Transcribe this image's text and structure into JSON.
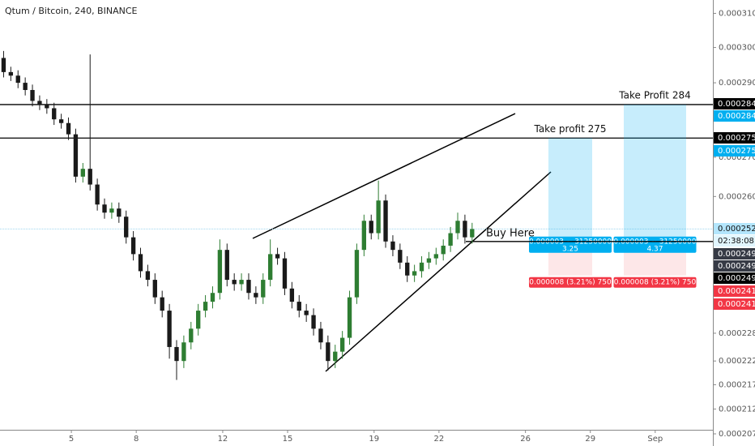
{
  "chart_data": {
    "type": "candlestick",
    "title": "Qtum / Bitcoin, 240, BINANCE",
    "log_scale": true,
    "up_color": "#2e7d32",
    "down_color": "#1a1a1a",
    "xlim": [
      -0.5,
      98.4
    ],
    "xticks": [
      {
        "value": 9.4,
        "label": "5"
      },
      {
        "value": 18.4,
        "label": "8"
      },
      {
        "value": 30.4,
        "label": "12"
      },
      {
        "value": 39.4,
        "label": "15"
      },
      {
        "value": 51.4,
        "label": "19"
      },
      {
        "value": 60.4,
        "label": "22"
      },
      {
        "value": 72.4,
        "label": "26"
      },
      {
        "value": 81.4,
        "label": "29"
      },
      {
        "value": 90.4,
        "label": "Sep"
      }
    ],
    "ylim": [
      0.000207,
      0.000314
    ],
    "yticks": [
      {
        "value": 0.00031,
        "label": "0.000310"
      },
      {
        "value": 0.0003,
        "label": "0.000300"
      },
      {
        "value": 0.00029,
        "label": "0.000290"
      },
      {
        "value": 0.00027,
        "label": "0.000270"
      },
      {
        "value": 0.00026,
        "label": "0.000260"
      },
      {
        "value": 0.000228,
        "label": "0.000228"
      },
      {
        "value": 0.000222,
        "label": "0.000222"
      },
      {
        "value": 0.000217,
        "label": "0.000217"
      },
      {
        "value": 0.000212,
        "label": "0.000212"
      },
      {
        "value": 0.000207,
        "label": "0.000207"
      }
    ],
    "open": [
      0.000297,
      0.000293,
      0.000292,
      0.00029,
      0.000288,
      0.000285,
      0.000284,
      0.000283,
      0.00028,
      0.000279,
      0.000276,
      0.000265,
      0.000267,
      0.000263,
      0.000258,
      0.000256,
      0.000257,
      0.000255,
      0.00025,
      0.000246,
      0.000242,
      0.00024,
      0.000236,
      0.000233,
      0.000225,
      0.000222,
      0.000226,
      0.000229,
      0.000233,
      0.000235,
      0.000237,
      0.000247,
      0.00024,
      0.000239,
      0.00024,
      0.000237,
      0.000236,
      0.00024,
      0.000246,
      0.000245,
      0.000238,
      0.000235,
      0.000233,
      0.000232,
      0.000229,
      0.000226,
      0.000222,
      0.000224,
      0.000227,
      0.000236,
      0.000247,
      0.000254,
      0.000251,
      0.000259,
      0.000249,
      0.000247,
      0.000244,
      0.000241,
      0.000242,
      0.000244,
      0.000245,
      0.000246,
      0.000248,
      0.000251,
      0.000254,
      0.00025
    ],
    "close": [
      0.000293,
      0.000292,
      0.00029,
      0.000288,
      0.000285,
      0.000284,
      0.000283,
      0.00028,
      0.000279,
      0.000276,
      0.000265,
      0.000267,
      0.000263,
      0.000258,
      0.000256,
      0.000257,
      0.000255,
      0.00025,
      0.000246,
      0.000242,
      0.00024,
      0.000236,
      0.000233,
      0.000225,
      0.000222,
      0.000226,
      0.000229,
      0.000233,
      0.000235,
      0.000237,
      0.000247,
      0.00024,
      0.000239,
      0.00024,
      0.000237,
      0.000236,
      0.00024,
      0.000246,
      0.000245,
      0.000238,
      0.000235,
      0.000233,
      0.000232,
      0.000229,
      0.000226,
      0.000222,
      0.000224,
      0.000227,
      0.000236,
      0.000247,
      0.000254,
      0.000251,
      0.000259,
      0.000249,
      0.000247,
      0.000244,
      0.000241,
      0.000242,
      0.000244,
      0.000245,
      0.000246,
      0.000248,
      0.000251,
      0.000254,
      0.00025,
      0.000252
    ],
    "high": [
      0.000299,
      0.0002945,
      0.0002935,
      0.0002915,
      0.0002895,
      0.0002865,
      0.0002855,
      0.0002845,
      0.0002815,
      0.0002805,
      0.0002775,
      0.0002685,
      0.000298,
      0.0002645,
      0.0002595,
      0.0002585,
      0.0002585,
      0.0002565,
      0.0002515,
      0.0002475,
      0.0002435,
      0.0002415,
      0.0002375,
      0.0002345,
      0.0002265,
      0.0002275,
      0.0002305,
      0.0002345,
      0.0002365,
      0.0002385,
      0.0002495,
      0.0002485,
      0.0002415,
      0.0002415,
      0.0002415,
      0.0002385,
      0.0002415,
      0.0002495,
      0.0002475,
      0.0002465,
      0.0002395,
      0.0002365,
      0.0002345,
      0.0002335,
      0.0002305,
      0.0002275,
      0.0002255,
      0.0002285,
      0.0002375,
      0.0002485,
      0.0002555,
      0.0002555,
      0.000264,
      0.0002605,
      0.0002505,
      0.0002485,
      0.0002455,
      0.0002435,
      0.0002455,
      0.0002465,
      0.0002475,
      0.0002495,
      0.0002525,
      0.000256,
      0.0002555,
      0.0002535
    ],
    "low": [
      0.0002915,
      0.0002905,
      0.0002885,
      0.0002865,
      0.0002835,
      0.0002825,
      0.0002815,
      0.0002785,
      0.0002775,
      0.0002745,
      0.0002635,
      0.0002635,
      0.0002615,
      0.0002565,
      0.0002545,
      0.0002545,
      0.0002535,
      0.0002485,
      0.0002445,
      0.0002405,
      0.0002385,
      0.0002345,
      0.0002315,
      0.0002225,
      0.000218,
      0.0002205,
      0.0002245,
      0.0002275,
      0.0002315,
      0.0002335,
      0.0002355,
      0.0002385,
      0.0002375,
      0.0002375,
      0.0002355,
      0.0002345,
      0.0002345,
      0.0002385,
      0.0002435,
      0.0002365,
      0.0002335,
      0.0002315,
      0.0002305,
      0.0002275,
      0.0002245,
      0.00022,
      0.0002205,
      0.0002225,
      0.0002255,
      0.0002345,
      0.0002455,
      0.0002495,
      0.0002495,
      0.0002475,
      0.0002455,
      0.0002425,
      0.0002395,
      0.0002395,
      0.0002405,
      0.0002425,
      0.0002435,
      0.0002445,
      0.0002465,
      0.0002495,
      0.0002485,
      0.0002485
    ],
    "levels": [
      0.000284,
      0.000275
    ],
    "current_price": 0.000252,
    "buy_line": {
      "value": 0.000249,
      "label": "Buy Here"
    },
    "positions": [
      {
        "entry": 0.000249,
        "target": 0.000275,
        "stop": 0.000241,
        "target_label": "Take profit 275",
        "entry_label": "0.000003 ~ 31250000",
        "ratio": "3.25",
        "stop_label": "0.000008 (3.21%) 750"
      },
      {
        "entry": 0.000249,
        "target": 0.000284,
        "stop": 0.000241,
        "target_label": "Take Profit 284",
        "entry_label": "0.000003 ~ 31250000",
        "ratio": "4.37",
        "stop_label": "0.000008 (3.21%) 750"
      }
    ],
    "target_color": "#00aff0",
    "stop_color": "#f23645",
    "badges": [
      {
        "label": "0.000284",
        "color": "#000000"
      },
      {
        "label": "0.000284",
        "color": "#00aff0"
      },
      {
        "label": "0.000275",
        "color": "#000000"
      },
      {
        "label": "0.000275",
        "color": "#00aff0"
      },
      {
        "label": "0.000252",
        "color": "#b3e5fc"
      },
      {
        "label": "02:38:08",
        "color": "#e1f5fe"
      },
      {
        "label": "0.000249",
        "color": "#363a45"
      },
      {
        "label": "0.000249",
        "color": "#363a45"
      },
      {
        "label": "0.000249",
        "color": "#000000"
      },
      {
        "label": "0.000241",
        "color": "#f23645"
      },
      {
        "label": "0.000241",
        "color": "#f23645"
      }
    ]
  }
}
